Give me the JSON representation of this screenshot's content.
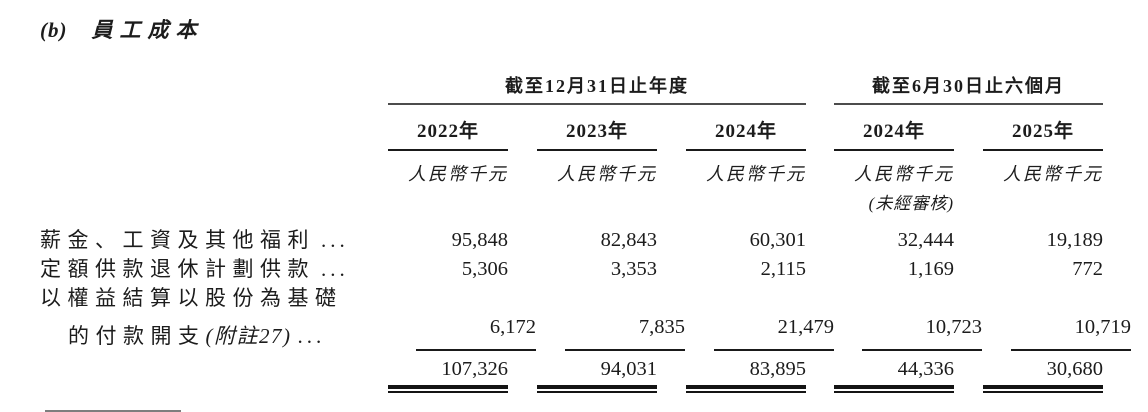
{
  "heading": {
    "index": "(b)",
    "title": "員工成本"
  },
  "table": {
    "group_headers": [
      {
        "label": "截至12月31日止年度",
        "colspan": 3
      },
      {
        "label": "截至6月30日止六個月",
        "colspan": 2
      }
    ],
    "year_headers": [
      "2022年",
      "2023年",
      "2024年",
      "2024年",
      "2025年"
    ],
    "unit_label": "人民幣千元",
    "unaudited_note": "(未經審核)",
    "leader": "...",
    "rows": [
      {
        "label": "薪金、工資及其他福利",
        "values": [
          "95,848",
          "82,843",
          "60,301",
          "32,444",
          "19,189"
        ]
      },
      {
        "label": "定額供款退休計劃供款",
        "values": [
          "5,306",
          "3,353",
          "2,115",
          "1,169",
          "772"
        ]
      },
      {
        "label_line1": "以權益結算以股份為基礎",
        "label_line2": "的付款開支",
        "note": "(附註27)",
        "values": [
          "6,172",
          "7,835",
          "21,479",
          "10,723",
          "10,719"
        ]
      }
    ],
    "total": {
      "values": [
        "107,326",
        "94,031",
        "83,895",
        "44,336",
        "30,680"
      ]
    }
  }
}
